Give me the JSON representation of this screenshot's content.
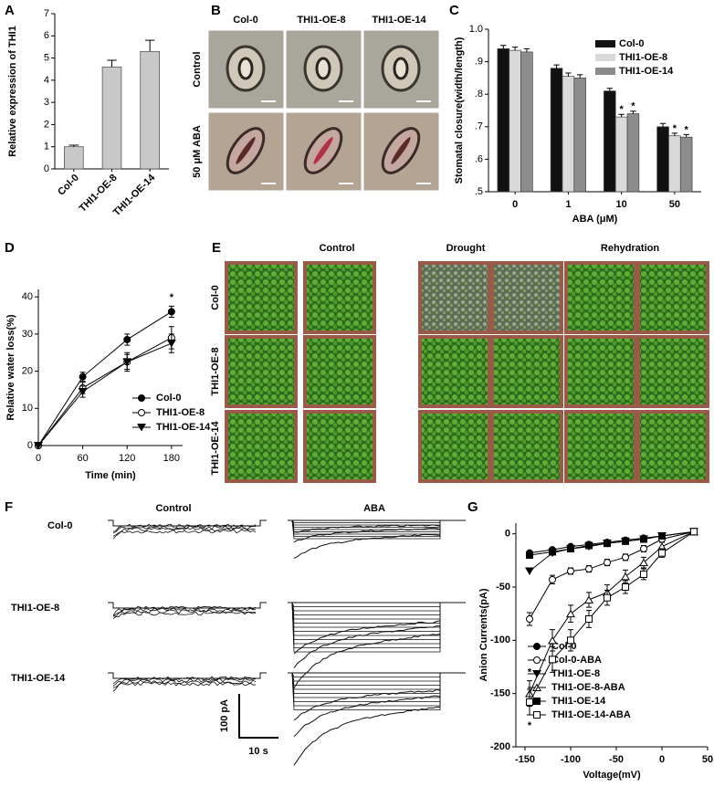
{
  "panels": {
    "labels": [
      "A",
      "B",
      "C",
      "D",
      "E",
      "F",
      "G"
    ]
  },
  "stomata": {
    "columns": [
      "Col-0",
      "THI1-OE-8",
      "THI1-OE-14"
    ],
    "rows": [
      "Control",
      "50 μM ABA"
    ]
  },
  "plants": {
    "columns": [
      "Control",
      "Drought",
      "Rehydration"
    ],
    "rows": [
      "Col-0",
      "THI1-OE-8",
      "THI1-OE-14"
    ]
  },
  "currents": {
    "columns": [
      "Control",
      "ABA"
    ],
    "rows": [
      "Col-0",
      "THI1-OE-8",
      "THI1-OE-14"
    ],
    "scale_y": "100 pA",
    "scale_x": "10 s"
  },
  "chart_data": [
    {
      "type": "bar",
      "ylabel": "Relative expression of THI1",
      "categories": [
        "Col-0",
        "THI1-OE-8",
        "THI1-OE-14"
      ],
      "values": [
        1.0,
        4.6,
        5.3
      ],
      "errors": [
        0.07,
        0.3,
        0.5
      ],
      "color": "#c8c8c8",
      "ylim": [
        0,
        7
      ],
      "yticks": [
        0,
        1,
        2,
        3,
        4,
        5,
        6,
        7
      ]
    },
    {
      "type": "bar",
      "ylabel": "Stomatal closure(width/length)",
      "xlabel": "ABA (μM)",
      "categories": [
        "0",
        "1",
        "10",
        "50"
      ],
      "series": [
        {
          "name": "Col-0",
          "color": "#111111",
          "values": [
            0.94,
            0.88,
            0.81,
            0.7
          ],
          "errors": [
            0.01,
            0.01,
            0.008,
            0.01
          ],
          "marks": [
            null,
            null,
            null,
            null
          ]
        },
        {
          "name": "THI1-OE-8",
          "color": "#d9d9d9",
          "values": [
            0.935,
            0.855,
            0.73,
            0.672
          ],
          "errors": [
            0.01,
            0.01,
            0.008,
            0.008
          ],
          "marks": [
            null,
            null,
            "*",
            "*"
          ]
        },
        {
          "name": "THI1-OE-14",
          "color": "#8c8c8c",
          "values": [
            0.93,
            0.85,
            0.74,
            0.668
          ],
          "errors": [
            0.01,
            0.01,
            0.008,
            0.008
          ],
          "marks": [
            null,
            null,
            "*",
            "*"
          ]
        }
      ],
      "ylim": [
        0.5,
        1.0
      ],
      "yticks": [
        {
          "value": 0.5,
          "label": ".5"
        },
        {
          "value": 0.6,
          "label": ".6"
        },
        {
          "value": 0.7,
          "label": ".7"
        },
        {
          "value": 0.8,
          "label": ".8"
        },
        {
          "value": 0.9,
          "label": ".9"
        },
        {
          "value": 1,
          "label": "1.0"
        }
      ]
    },
    {
      "type": "line",
      "ylabel": "Relative water loss(%)",
      "xlabel": "Time (min)",
      "x": [
        0,
        60,
        120,
        180
      ],
      "series": [
        {
          "name": "Col-0",
          "color": "#000000",
          "marker": "circle-filled",
          "values": [
            0,
            18.5,
            28.5,
            36
          ],
          "errors": [
            0,
            1.2,
            1.5,
            1.5
          ],
          "marks": [
            null,
            null,
            null,
            "*"
          ]
        },
        {
          "name": "THI1-OE-8",
          "color": "#000000",
          "marker": "circle-open",
          "values": [
            0,
            15.5,
            22.5,
            29
          ],
          "errors": [
            0,
            1.5,
            2.5,
            3
          ]
        },
        {
          "name": "THI1-OE-14",
          "color": "#000000",
          "marker": "triangle-down-filled",
          "values": [
            0,
            14.5,
            22.5,
            27.5
          ],
          "errors": [
            0,
            1.5,
            2,
            2.5
          ]
        }
      ],
      "xlim": [
        0,
        195
      ],
      "xticks": [
        0,
        60,
        120,
        180
      ],
      "ylim": [
        0,
        42
      ],
      "yticks": [
        0,
        10,
        20,
        30,
        40
      ]
    },
    {
      "type": "line",
      "ylabel": "Anion Currents(pA)",
      "xlabel": "Voltage(mV)",
      "x": [
        -145,
        -120,
        -100,
        -80,
        -60,
        -40,
        -20,
        0,
        35
      ],
      "series": [
        {
          "name": "Col-0",
          "color": "#000000",
          "marker": "circle-filled",
          "values": [
            -18,
            -15,
            -12,
            -10,
            -8,
            -6,
            -4,
            -2,
            2
          ]
        },
        {
          "name": "Col-0-ABA",
          "color": "#000000",
          "marker": "circle-open",
          "values": [
            -80,
            -43,
            -35,
            -33,
            -27,
            -22,
            -14,
            -5,
            2
          ],
          "errors": [
            6,
            4,
            3,
            3,
            3,
            3,
            3,
            2,
            1
          ]
        },
        {
          "name": "THI1-OE-8",
          "color": "#000000",
          "marker": "triangle-down-filled",
          "values": [
            -35,
            -18,
            -14,
            -12,
            -9,
            -7,
            -5,
            -2,
            2
          ]
        },
        {
          "name": "THI1-OE-8-ABA",
          "color": "#000000",
          "marker": "triangle-up-open",
          "values": [
            -150,
            -100,
            -75,
            -62,
            -55,
            -40,
            -27,
            -12,
            2
          ],
          "errors": [
            12,
            10,
            8,
            7,
            7,
            6,
            5,
            4,
            1
          ],
          "marks": [
            "*",
            null,
            null,
            null,
            null,
            null,
            null,
            null,
            null
          ]
        },
        {
          "name": "THI1-OE-14",
          "color": "#000000",
          "marker": "square-filled",
          "values": [
            -20,
            -17,
            -14,
            -11,
            -9,
            -7,
            -5,
            -2,
            2
          ]
        },
        {
          "name": "THI1-OE-14-ABA",
          "color": "#000000",
          "marker": "square-open",
          "values": [
            -158,
            -118,
            -100,
            -80,
            -60,
            -50,
            -38,
            -18,
            2
          ],
          "errors": [
            12,
            12,
            10,
            8,
            7,
            6,
            5,
            4,
            1
          ],
          "marks": [
            "*",
            null,
            null,
            null,
            null,
            null,
            null,
            null,
            null
          ]
        }
      ],
      "xlim": [
        -160,
        50
      ],
      "xticks": [
        -150,
        -100,
        -50,
        0,
        50
      ],
      "ylim": [
        -200,
        10
      ],
      "yticks": [
        -200,
        -150,
        -100,
        -50,
        0
      ]
    }
  ]
}
